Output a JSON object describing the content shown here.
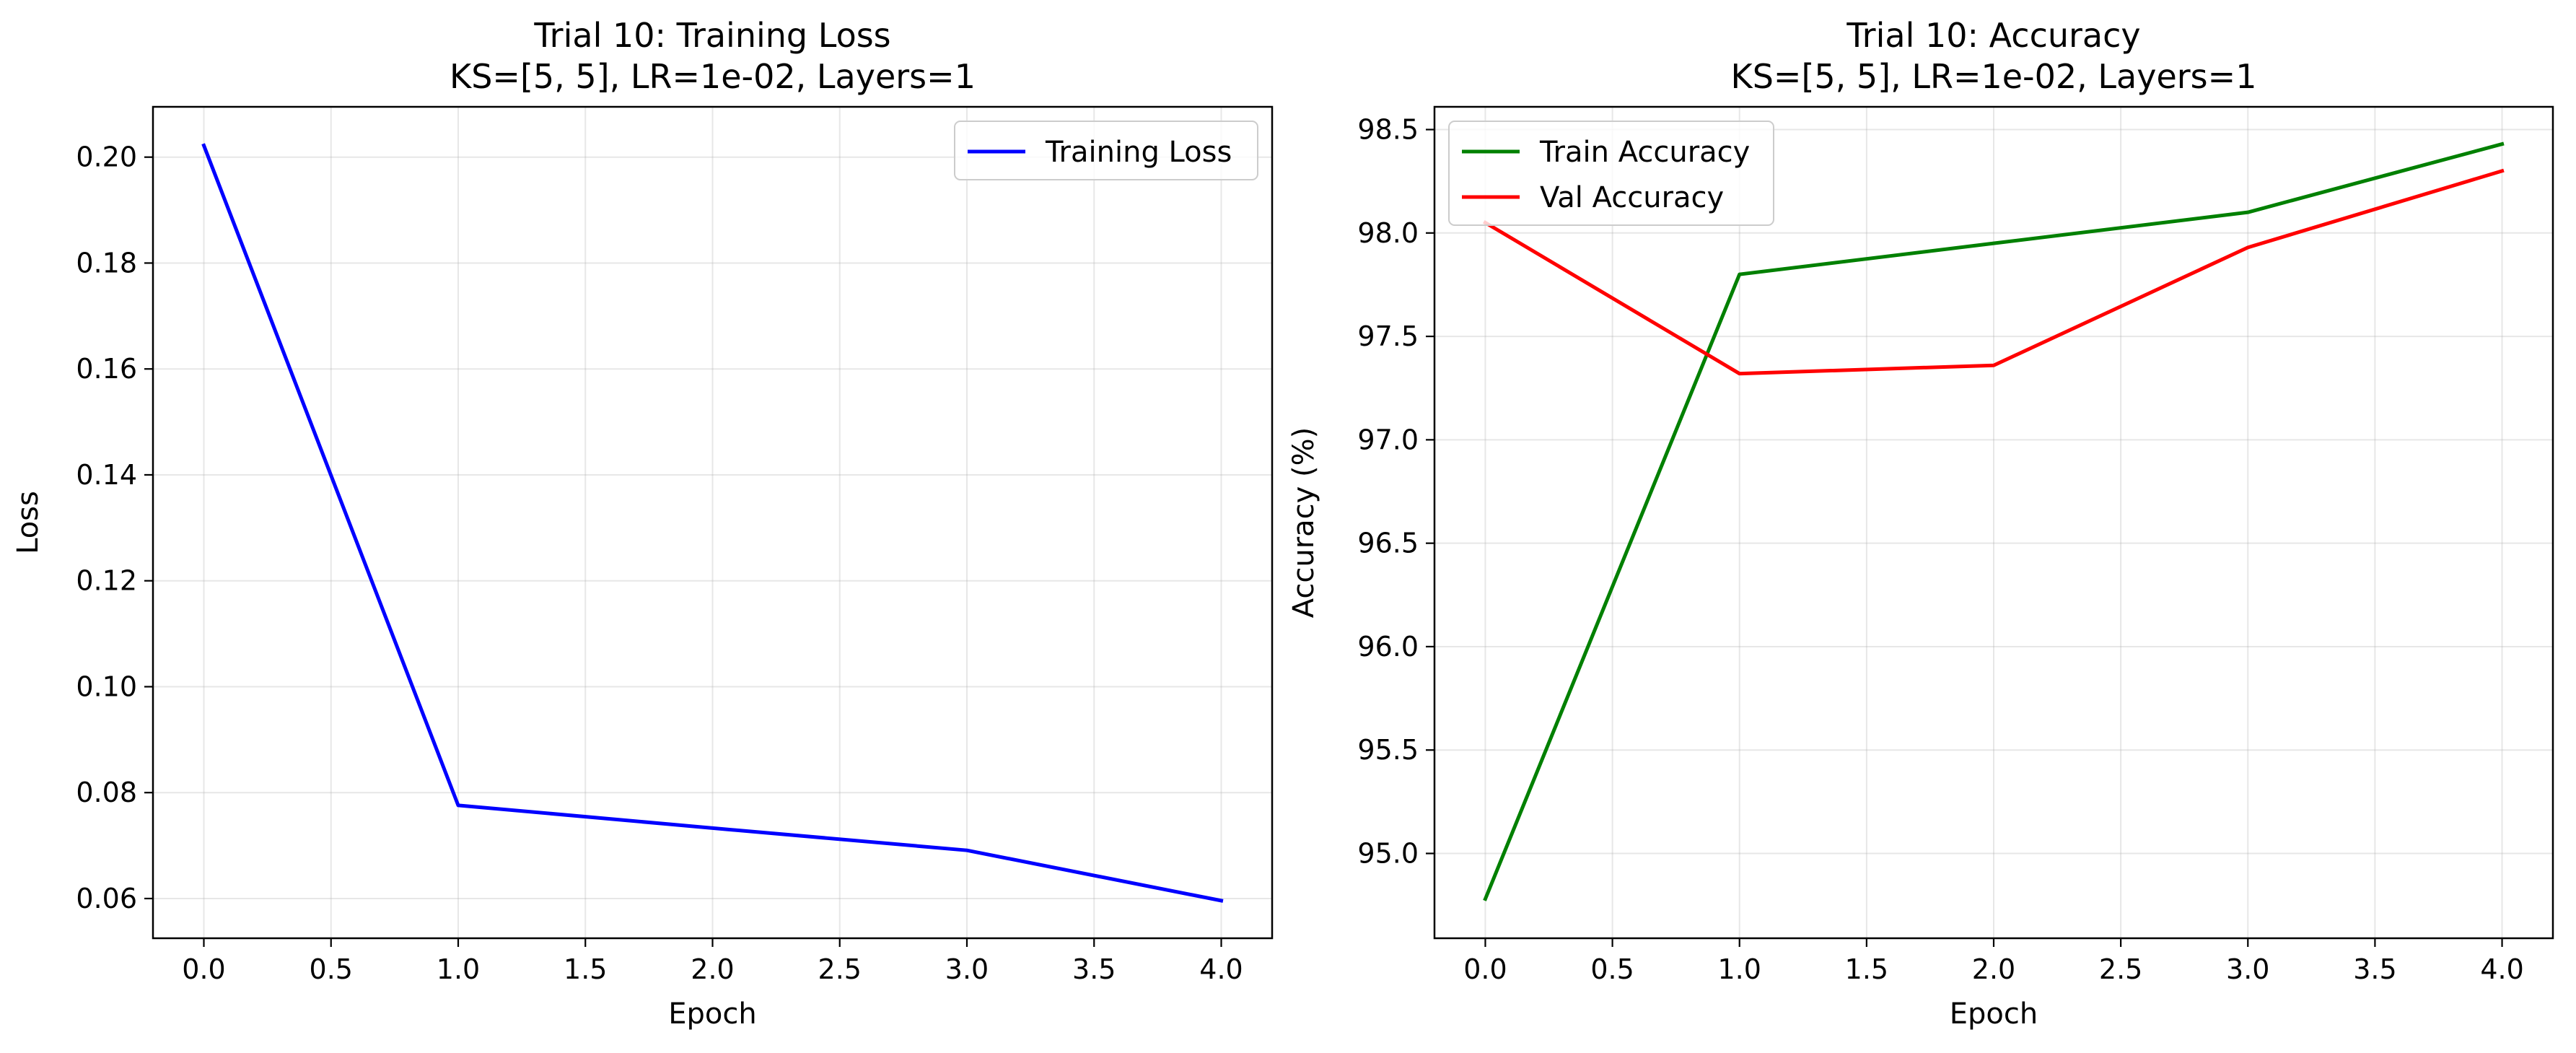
{
  "chart_data": [
    {
      "type": "line",
      "title": "Trial 10: Training Loss",
      "subtitle": "KS=[5, 5], LR=1e-02, Layers=1",
      "xlabel": "Epoch",
      "ylabel": "Loss",
      "xlim": [
        -0.2,
        4.2
      ],
      "ylim": [
        0.0525,
        0.2095
      ],
      "xticks": [
        0,
        0.5,
        1,
        1.5,
        2,
        2.5,
        3,
        3.5,
        4
      ],
      "xtick_labels": [
        "0.0",
        "0.5",
        "1.0",
        "1.5",
        "2.0",
        "2.5",
        "3.0",
        "3.5",
        "4.0"
      ],
      "yticks": [
        0.06,
        0.08,
        0.1,
        0.12,
        0.14,
        0.16,
        0.18,
        0.2
      ],
      "ytick_labels": [
        "0.06",
        "0.08",
        "0.10",
        "0.12",
        "0.14",
        "0.16",
        "0.18",
        "0.20"
      ],
      "grid": true,
      "legend": "upper right",
      "x": [
        0,
        1,
        2,
        3,
        4
      ],
      "series": [
        {
          "name": "Training Loss",
          "color": "#0000ff",
          "values": [
            0.2022,
            0.0776,
            0.0733,
            0.0691,
            0.0596
          ]
        }
      ]
    },
    {
      "type": "line",
      "title": "Trial 10: Accuracy",
      "subtitle": "KS=[5, 5], LR=1e-02, Layers=1",
      "xlabel": "Epoch",
      "ylabel": "Accuracy (%)",
      "xlim": [
        -0.2,
        4.2
      ],
      "ylim": [
        94.59,
        98.61
      ],
      "xticks": [
        0,
        0.5,
        1,
        1.5,
        2,
        2.5,
        3,
        3.5,
        4
      ],
      "xtick_labels": [
        "0.0",
        "0.5",
        "1.0",
        "1.5",
        "2.0",
        "2.5",
        "3.0",
        "3.5",
        "4.0"
      ],
      "yticks": [
        95.0,
        95.5,
        96.0,
        96.5,
        97.0,
        97.5,
        98.0,
        98.5
      ],
      "ytick_labels": [
        "95.0",
        "95.5",
        "96.0",
        "96.5",
        "97.0",
        "97.5",
        "98.0",
        "98.5"
      ],
      "grid": true,
      "legend": "upper left",
      "x": [
        0,
        1,
        2,
        3,
        4
      ],
      "series": [
        {
          "name": "Train Accuracy",
          "color": "#008000",
          "values": [
            94.78,
            97.8,
            97.95,
            98.1,
            98.43
          ]
        },
        {
          "name": "Val Accuracy",
          "color": "#ff0000",
          "values": [
            98.05,
            97.32,
            97.36,
            97.93,
            98.3
          ]
        }
      ]
    }
  ]
}
